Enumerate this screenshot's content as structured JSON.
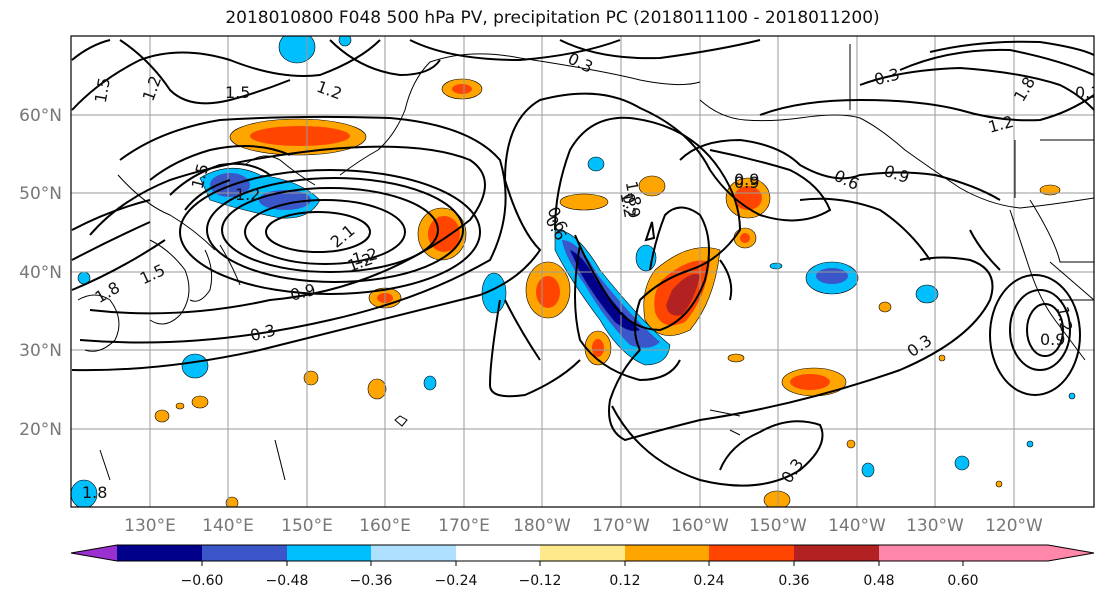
{
  "title": "2018010800 F048 500 hPa PV, precipitation PC (2018011100 - 2018011200)",
  "map": {
    "lon_labels": [
      "130°E",
      "140°E",
      "150°E",
      "160°E",
      "170°E",
      "180°W",
      "170°W",
      "160°W",
      "150°W",
      "140°W",
      "130°W",
      "120°W"
    ],
    "lat_labels": [
      "60°N",
      "50°N",
      "40°N",
      "30°N",
      "20°N"
    ],
    "contour_labels": [
      "1.5",
      "1.2",
      "1.5",
      "1.2",
      "0.3",
      "0.3",
      "1.8",
      "1.2",
      "0.9",
      "0.6",
      "0.9",
      "1.8",
      "1.5",
      "1.2",
      "2.1",
      "0.9",
      "1.2",
      "1.5",
      "0.3",
      "0.6",
      "1.2",
      "0.9",
      "0.6",
      "0.9",
      "1.2",
      "0.3",
      "1.2",
      "0.9",
      "0.3",
      "0.3",
      "1.8",
      "1.8"
    ]
  },
  "colorbar": {
    "colors": [
      "#9b30d0",
      "#00008b",
      "#3a56c8",
      "#00bfff",
      "#b0e0ff",
      "#ffffff",
      "#ffe98a",
      "#ffa500",
      "#ff4500",
      "#b22222",
      "#ff88aa"
    ],
    "tick_labels": [
      "−0.60",
      "−0.48",
      "−0.36",
      "−0.24",
      "−0.12",
      "0.12",
      "0.24",
      "0.36",
      "0.48",
      "0.60"
    ]
  }
}
